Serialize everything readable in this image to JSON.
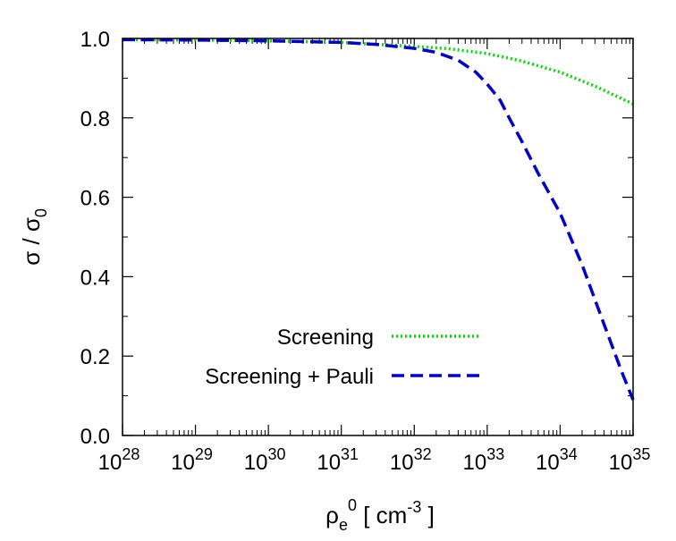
{
  "chart_data": {
    "type": "line",
    "x_scale": "log",
    "xlim": [
      1e+28,
      1e+35
    ],
    "ylim": [
      0.0,
      1.0
    ],
    "grid": false,
    "legend_position": "bottom-right",
    "x_ticks": [
      {
        "mantissa": "10",
        "exponent": "28"
      },
      {
        "mantissa": "10",
        "exponent": "29"
      },
      {
        "mantissa": "10",
        "exponent": "30"
      },
      {
        "mantissa": "10",
        "exponent": "31"
      },
      {
        "mantissa": "10",
        "exponent": "32"
      },
      {
        "mantissa": "10",
        "exponent": "33"
      },
      {
        "mantissa": "10",
        "exponent": "34"
      },
      {
        "mantissa": "10",
        "exponent": "35"
      }
    ],
    "y_ticks": [
      "0.0",
      "0.2",
      "0.4",
      "0.6",
      "0.8",
      "1.0"
    ],
    "xlabel": {
      "base": "ρ",
      "sub": "e",
      "sup": "0",
      "rest1": " [ cm",
      "rest_sup": "-3",
      "rest2": " ]"
    },
    "ylabel": {
      "base": "σ / σ",
      "sub": "0"
    },
    "series": [
      {
        "name": "Screening",
        "color": "#00dd00",
        "style": "dotted",
        "x": [
          1e+28,
          1e+29,
          1e+30,
          1e+31,
          1e+32,
          3e+32,
          1e+33,
          3e+33,
          1e+34,
          3e+34,
          1e+35
        ],
        "y": [
          0.997,
          0.996,
          0.994,
          0.99,
          0.98,
          0.974,
          0.962,
          0.943,
          0.915,
          0.88,
          0.835
        ]
      },
      {
        "name": "Screening + Pauli",
        "color": "#0000cc",
        "style": "dashed",
        "x": [
          1e+28,
          1e+29,
          1e+30,
          1e+31,
          3e+31,
          1e+32,
          2e+32,
          4e+32,
          7e+32,
          1e+33,
          1.5e+33,
          2e+33,
          3e+33,
          5e+33,
          1e+34,
          2e+34,
          4e+34,
          7e+34,
          1e+35
        ],
        "y": [
          0.997,
          0.996,
          0.994,
          0.99,
          0.985,
          0.975,
          0.965,
          0.945,
          0.915,
          0.885,
          0.845,
          0.8,
          0.74,
          0.66,
          0.56,
          0.43,
          0.28,
          0.16,
          0.09
        ]
      }
    ]
  }
}
